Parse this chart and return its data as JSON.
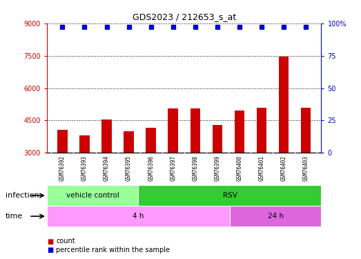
{
  "title": "GDS2023 / 212653_s_at",
  "samples": [
    "GSM76392",
    "GSM76393",
    "GSM76394",
    "GSM76395",
    "GSM76396",
    "GSM76397",
    "GSM76398",
    "GSM76399",
    "GSM76400",
    "GSM76401",
    "GSM76402",
    "GSM76403"
  ],
  "counts": [
    4050,
    3800,
    4550,
    4000,
    4150,
    5050,
    5050,
    4300,
    4950,
    5100,
    7450,
    5100
  ],
  "percentile_ranks": [
    97,
    97,
    97,
    97,
    97,
    97,
    97,
    97,
    97,
    97,
    97,
    97
  ],
  "ylim_left": [
    3000,
    9000
  ],
  "ylim_right": [
    0,
    100
  ],
  "yticks_left": [
    3000,
    4500,
    6000,
    7500,
    9000
  ],
  "yticks_right": [
    0,
    25,
    50,
    75,
    100
  ],
  "bar_color": "#cc0000",
  "dot_color": "#0000cc",
  "infection_groups": [
    {
      "label": "vehicle control",
      "start": 0,
      "end": 4,
      "color": "#99ff99"
    },
    {
      "label": "RSV",
      "start": 4,
      "end": 12,
      "color": "#33cc33"
    }
  ],
  "time_groups": [
    {
      "label": "4 h",
      "start": 0,
      "end": 8,
      "color": "#ff99ff"
    },
    {
      "label": "24 h",
      "start": 8,
      "end": 12,
      "color": "#dd66dd"
    }
  ],
  "label_row1": "infection",
  "label_row2": "time",
  "legend_count_label": "count",
  "legend_percentile_label": "percentile rank within the sample"
}
